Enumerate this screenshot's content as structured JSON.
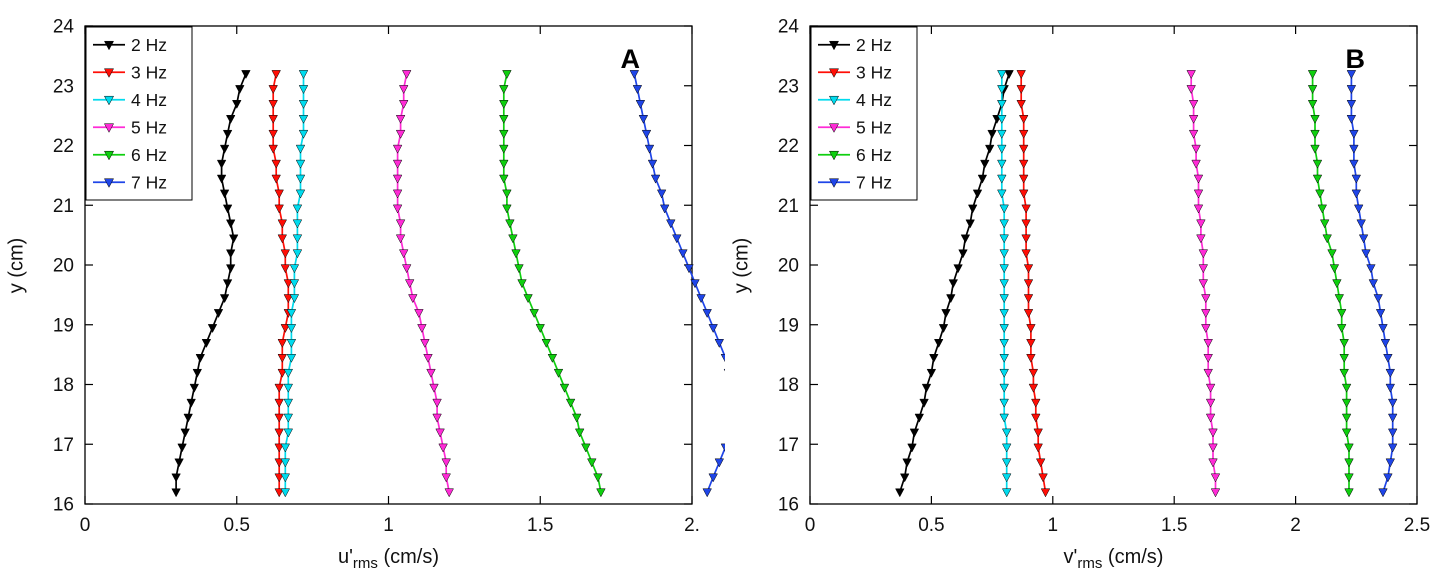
{
  "figure": {
    "background": "#ffffff"
  },
  "legend_labels": [
    "2 Hz",
    "3 Hz",
    "4 Hz",
    "5 Hz",
    "6 Hz",
    "7 Hz"
  ],
  "chart_data": [
    {
      "type": "line",
      "panel": "A",
      "marker": "triangle-down",
      "legend_position": "top-left",
      "grid": false,
      "xlabel": "u'_rms (cm/s)",
      "xlabel_pre": "u'",
      "xlabel_sub": "rms",
      "xlabel_post": " (cm/s)",
      "ylabel": "y (cm)",
      "xlim": [
        0,
        2
      ],
      "ylim": [
        16,
        24
      ],
      "x_tick_values": [
        0,
        0.5,
        1,
        1.5,
        2
      ],
      "x_tick_labels": [
        "0",
        "0.5",
        "1",
        "1.5",
        "2."
      ],
      "y_tick_values": [
        16,
        17,
        18,
        19,
        20,
        21,
        22,
        23,
        24
      ],
      "y": [
        16.2,
        16.45,
        16.7,
        16.95,
        17.2,
        17.45,
        17.7,
        17.95,
        18.2,
        18.45,
        18.7,
        18.95,
        19.2,
        19.45,
        19.7,
        19.95,
        20.2,
        20.45,
        20.7,
        20.95,
        21.2,
        21.45,
        21.7,
        21.95,
        22.2,
        22.45,
        22.7,
        22.95,
        23.2
      ],
      "series": [
        {
          "name": "2 Hz",
          "color": "#000000",
          "values": [
            0.3,
            0.3,
            0.31,
            0.32,
            0.33,
            0.34,
            0.35,
            0.36,
            0.37,
            0.38,
            0.4,
            0.42,
            0.44,
            0.46,
            0.47,
            0.48,
            0.48,
            0.49,
            0.48,
            0.47,
            0.46,
            0.45,
            0.45,
            0.46,
            0.47,
            0.48,
            0.5,
            0.51,
            0.53
          ]
        },
        {
          "name": "3 Hz",
          "color": "#ff0e06",
          "values": [
            0.64,
            0.64,
            0.64,
            0.64,
            0.64,
            0.64,
            0.64,
            0.64,
            0.65,
            0.65,
            0.65,
            0.66,
            0.67,
            0.67,
            0.67,
            0.66,
            0.66,
            0.65,
            0.65,
            0.64,
            0.64,
            0.63,
            0.63,
            0.62,
            0.62,
            0.62,
            0.62,
            0.62,
            0.63
          ]
        },
        {
          "name": "4 Hz",
          "color": "#00dbee",
          "values": [
            0.66,
            0.66,
            0.66,
            0.66,
            0.67,
            0.67,
            0.67,
            0.67,
            0.67,
            0.68,
            0.68,
            0.68,
            0.68,
            0.69,
            0.69,
            0.69,
            0.7,
            0.7,
            0.7,
            0.7,
            0.71,
            0.71,
            0.71,
            0.71,
            0.72,
            0.72,
            0.72,
            0.72,
            0.72
          ]
        },
        {
          "name": "5 Hz",
          "color": "#ff2bd6",
          "values": [
            1.2,
            1.19,
            1.19,
            1.18,
            1.17,
            1.16,
            1.16,
            1.15,
            1.14,
            1.13,
            1.12,
            1.11,
            1.1,
            1.08,
            1.07,
            1.06,
            1.05,
            1.04,
            1.04,
            1.03,
            1.03,
            1.03,
            1.03,
            1.03,
            1.04,
            1.04,
            1.05,
            1.05,
            1.06
          ]
        },
        {
          "name": "6 Hz",
          "color": "#0fcf0f",
          "values": [
            1.7,
            1.69,
            1.67,
            1.65,
            1.63,
            1.62,
            1.6,
            1.58,
            1.56,
            1.54,
            1.52,
            1.5,
            1.48,
            1.46,
            1.44,
            1.43,
            1.42,
            1.41,
            1.4,
            1.39,
            1.39,
            1.38,
            1.38,
            1.38,
            1.38,
            1.38,
            1.38,
            1.38,
            1.39
          ]
        },
        {
          "name": "7 Hz",
          "color": "#1f45e8",
          "values": [
            2.05,
            2.07,
            2.09,
            2.11,
            2.13,
            2.14,
            2.14,
            2.13,
            2.12,
            2.11,
            2.09,
            2.07,
            2.05,
            2.03,
            2.01,
            1.99,
            1.97,
            1.95,
            1.93,
            1.91,
            1.9,
            1.88,
            1.87,
            1.86,
            1.85,
            1.84,
            1.83,
            1.82,
            1.81
          ]
        }
      ]
    },
    {
      "type": "line",
      "panel": "B",
      "marker": "triangle-down",
      "legend_position": "top-left",
      "grid": false,
      "xlabel": "v'_rms (cm/s)",
      "xlabel_pre": "v'",
      "xlabel_sub": "rms",
      "xlabel_post": " (cm/s)",
      "ylabel": "y (cm)",
      "xlim": [
        0,
        2.5
      ],
      "ylim": [
        16,
        24
      ],
      "x_tick_values": [
        0,
        0.5,
        1,
        1.5,
        2,
        2.5
      ],
      "x_tick_labels": [
        "0",
        "0.5",
        "1",
        "1.5",
        "2",
        "2.5"
      ],
      "y_tick_values": [
        16,
        17,
        18,
        19,
        20,
        21,
        22,
        23,
        24
      ],
      "y": [
        16.2,
        16.45,
        16.7,
        16.95,
        17.2,
        17.45,
        17.7,
        17.95,
        18.2,
        18.45,
        18.7,
        18.95,
        19.2,
        19.45,
        19.7,
        19.95,
        20.2,
        20.45,
        20.7,
        20.95,
        21.2,
        21.45,
        21.7,
        21.95,
        22.2,
        22.45,
        22.7,
        22.95,
        23.2
      ],
      "series": [
        {
          "name": "2 Hz",
          "color": "#000000",
          "values": [
            0.37,
            0.39,
            0.4,
            0.42,
            0.43,
            0.45,
            0.47,
            0.48,
            0.5,
            0.51,
            0.53,
            0.55,
            0.56,
            0.58,
            0.59,
            0.61,
            0.63,
            0.64,
            0.66,
            0.67,
            0.69,
            0.71,
            0.72,
            0.74,
            0.75,
            0.77,
            0.79,
            0.8,
            0.82
          ]
        },
        {
          "name": "3 Hz",
          "color": "#ff0e06",
          "values": [
            0.97,
            0.96,
            0.95,
            0.94,
            0.94,
            0.93,
            0.93,
            0.92,
            0.92,
            0.91,
            0.91,
            0.91,
            0.9,
            0.9,
            0.9,
            0.9,
            0.89,
            0.89,
            0.89,
            0.89,
            0.88,
            0.88,
            0.88,
            0.88,
            0.88,
            0.88,
            0.87,
            0.87,
            0.87
          ]
        },
        {
          "name": "4 Hz",
          "color": "#00dbee",
          "values": [
            0.81,
            0.81,
            0.81,
            0.81,
            0.81,
            0.8,
            0.8,
            0.8,
            0.8,
            0.8,
            0.8,
            0.8,
            0.8,
            0.8,
            0.8,
            0.8,
            0.8,
            0.8,
            0.8,
            0.8,
            0.79,
            0.79,
            0.79,
            0.79,
            0.79,
            0.79,
            0.79,
            0.79,
            0.79
          ]
        },
        {
          "name": "5 Hz",
          "color": "#ff2bd6",
          "values": [
            1.67,
            1.67,
            1.66,
            1.66,
            1.66,
            1.65,
            1.65,
            1.65,
            1.64,
            1.64,
            1.64,
            1.63,
            1.63,
            1.63,
            1.62,
            1.62,
            1.62,
            1.61,
            1.61,
            1.6,
            1.6,
            1.6,
            1.59,
            1.59,
            1.58,
            1.58,
            1.58,
            1.57,
            1.57
          ]
        },
        {
          "name": "6 Hz",
          "color": "#0fcf0f",
          "values": [
            2.22,
            2.22,
            2.22,
            2.22,
            2.21,
            2.21,
            2.21,
            2.21,
            2.2,
            2.2,
            2.2,
            2.19,
            2.19,
            2.18,
            2.17,
            2.16,
            2.15,
            2.13,
            2.12,
            2.11,
            2.1,
            2.09,
            2.09,
            2.08,
            2.08,
            2.08,
            2.07,
            2.07,
            2.07
          ]
        },
        {
          "name": "7 Hz",
          "color": "#1f45e8",
          "values": [
            2.36,
            2.38,
            2.39,
            2.4,
            2.4,
            2.4,
            2.4,
            2.39,
            2.39,
            2.38,
            2.37,
            2.36,
            2.35,
            2.34,
            2.32,
            2.31,
            2.29,
            2.28,
            2.27,
            2.26,
            2.25,
            2.25,
            2.24,
            2.24,
            2.24,
            2.23,
            2.23,
            2.23,
            2.23
          ]
        }
      ]
    }
  ]
}
